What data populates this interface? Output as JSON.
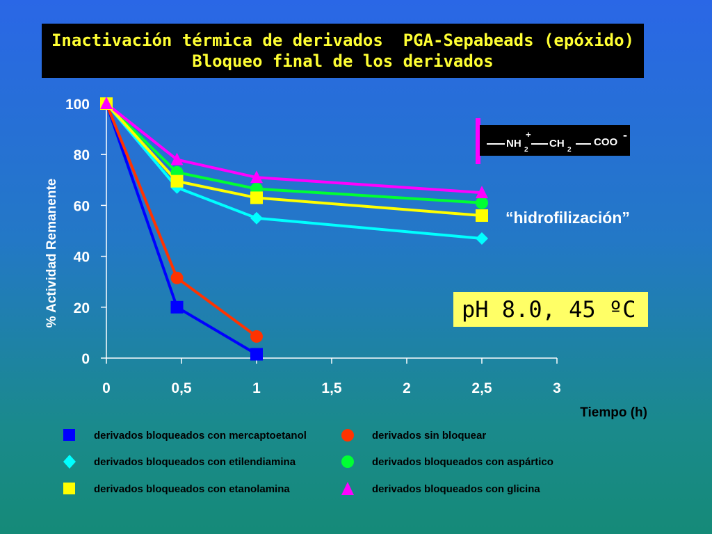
{
  "title": {
    "line1": "Inactivación térmica de derivados  PGA-Sepabeads (epóxido)",
    "line2": "Bloqueo final de los derivados"
  },
  "annotations": {
    "hidrofilizacion": "“hidrofilización”",
    "conditions": "pH 8.0, 45 ºC",
    "formula": {
      "nh": "NH",
      "nh_sub": "2",
      "plus": "+",
      "ch": "CH",
      "ch_sub": "2",
      "coo": "COO",
      "minus": "-"
    }
  },
  "colors": {
    "mercaptoetanol": "#0000ff",
    "sin_bloquear": "#ff3300",
    "etilendiamina": "#00ffff",
    "aspartico": "#00ff33",
    "etanolamina": "#ffff00",
    "glicina": "#ff00ff"
  },
  "chart_data": {
    "type": "line",
    "xlabel": "Tiempo (h)",
    "ylabel": "% Actividad Remanente",
    "xlim": [
      0,
      3
    ],
    "ylim": [
      0,
      100
    ],
    "x_ticks": [
      "0",
      "0,5",
      "1",
      "1,5",
      "2",
      "2,5",
      "3"
    ],
    "x_tick_values": [
      0,
      0.5,
      1,
      1.5,
      2,
      2.5,
      3
    ],
    "y_ticks": [
      "0",
      "20",
      "40",
      "60",
      "80",
      "100"
    ],
    "y_tick_values": [
      0,
      20,
      40,
      60,
      80,
      100
    ],
    "legend_position": "bottom",
    "series": [
      {
        "name": "derivados bloqueados con mercaptoetanol",
        "marker": "square",
        "color": "#0000ff",
        "points": [
          [
            0,
            100
          ],
          [
            0.47,
            20
          ],
          [
            1,
            1.5
          ]
        ]
      },
      {
        "name": "derivados sin bloquear",
        "marker": "circle",
        "color": "#ff3300",
        "points": [
          [
            0,
            100
          ],
          [
            0.47,
            31.5
          ],
          [
            1,
            8.5
          ]
        ]
      },
      {
        "name": "derivados bloqueados con etilendiamina",
        "marker": "diamond",
        "color": "#00ffff",
        "points": [
          [
            0,
            100
          ],
          [
            0.47,
            67
          ],
          [
            1,
            55
          ],
          [
            2.5,
            47
          ]
        ]
      },
      {
        "name": "derivados bloqueados con aspártico",
        "marker": "circle",
        "color": "#00ff33",
        "points": [
          [
            0,
            100
          ],
          [
            0.47,
            73
          ],
          [
            1,
            66.5
          ],
          [
            2.5,
            61
          ]
        ]
      },
      {
        "name": "derivados bloqueados con etanolamina",
        "marker": "square",
        "color": "#ffff00",
        "points": [
          [
            0,
            100
          ],
          [
            0.47,
            69.5
          ],
          [
            1,
            63
          ],
          [
            2.5,
            56
          ]
        ]
      },
      {
        "name": "derivados bloqueados con glicina",
        "marker": "triangle",
        "color": "#ff00ff",
        "points": [
          [
            0,
            100
          ],
          [
            0.47,
            78
          ],
          [
            1,
            71
          ],
          [
            2.5,
            65
          ]
        ]
      }
    ]
  },
  "legend": {
    "items": [
      {
        "label": "derivados bloqueados con mercaptoetanol",
        "marker": "square",
        "color": "#0000ff"
      },
      {
        "label": "derivados sin bloquear",
        "marker": "circle",
        "color": "#ff3300"
      },
      {
        "label": "derivados bloqueados con etilendiamina",
        "marker": "diamond",
        "color": "#00ffff"
      },
      {
        "label": "derivados bloqueados con aspártico",
        "marker": "circle",
        "color": "#00ff33"
      },
      {
        "label": "derivados bloqueados con etanolamina",
        "marker": "square",
        "color": "#ffff00"
      },
      {
        "label": "derivados bloqueados con glicina",
        "marker": "triangle",
        "color": "#ff00ff"
      }
    ]
  }
}
